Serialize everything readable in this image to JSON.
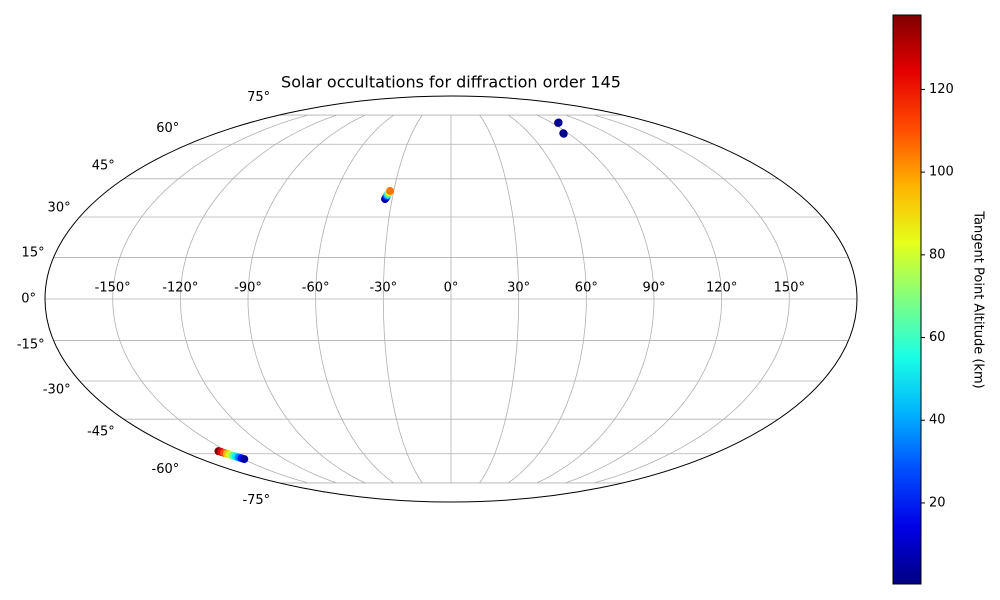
{
  "chart_data": {
    "type": "scatter",
    "projection": "mollweide",
    "title": "Solar occultations for diffraction order 145",
    "x": [
      -33.6,
      -33.3,
      -33.0,
      -32.8,
      -32.5,
      -32.2,
      -31.9,
      95,
      95.5,
      96.5,
      86,
      86.3,
      -155.8,
      -155.0,
      -154.3,
      -153.5,
      -152.8,
      -152.0,
      -151.3,
      -150.5,
      -149.8,
      -149.0
    ],
    "y": [
      36.9,
      37.4,
      38.0,
      38.5,
      39.0,
      39.6,
      40.1,
      70.5,
      70.6,
      70.8,
      65,
      65.3,
      -58.8,
      -59.2,
      -59.6,
      -60.0,
      -60.4,
      -60.9,
      -61.3,
      -61.7,
      -62.1,
      -62.5
    ],
    "c": [
      3,
      10,
      25,
      45,
      65,
      85,
      105,
      100,
      5,
      3,
      3,
      2,
      138,
      125,
      110,
      95,
      80,
      65,
      50,
      35,
      20,
      5
    ],
    "colormap": "jet",
    "clim": [
      0.4,
      138
    ],
    "cticks": [
      20,
      40,
      60,
      80,
      100,
      120
    ],
    "colorbar_label": "Tangent Point Altitude (km)",
    "grid": true,
    "xticks": [
      {
        "value": -150,
        "label": "-150°"
      },
      {
        "value": -120,
        "label": "-120°"
      },
      {
        "value": -90,
        "label": "-90°"
      },
      {
        "value": -60,
        "label": "-60°"
      },
      {
        "value": -30,
        "label": "-30°"
      },
      {
        "value": 0,
        "label": "0°"
      },
      {
        "value": 30,
        "label": "30°"
      },
      {
        "value": 60,
        "label": "60°"
      },
      {
        "value": 90,
        "label": "90°"
      },
      {
        "value": 120,
        "label": "120°"
      },
      {
        "value": 150,
        "label": "150°"
      }
    ],
    "yticks": [
      {
        "value": -75,
        "label": "-75°"
      },
      {
        "value": -60,
        "label": "-60°"
      },
      {
        "value": -45,
        "label": "-45°"
      },
      {
        "value": -30,
        "label": "-30°"
      },
      {
        "value": -15,
        "label": "-15°"
      },
      {
        "value": 0,
        "label": "0°"
      },
      {
        "value": 15,
        "label": "15°"
      },
      {
        "value": 30,
        "label": "30°"
      },
      {
        "value": 45,
        "label": "45°"
      },
      {
        "value": 60,
        "label": "60°"
      },
      {
        "value": 75,
        "label": "75°"
      }
    ]
  }
}
